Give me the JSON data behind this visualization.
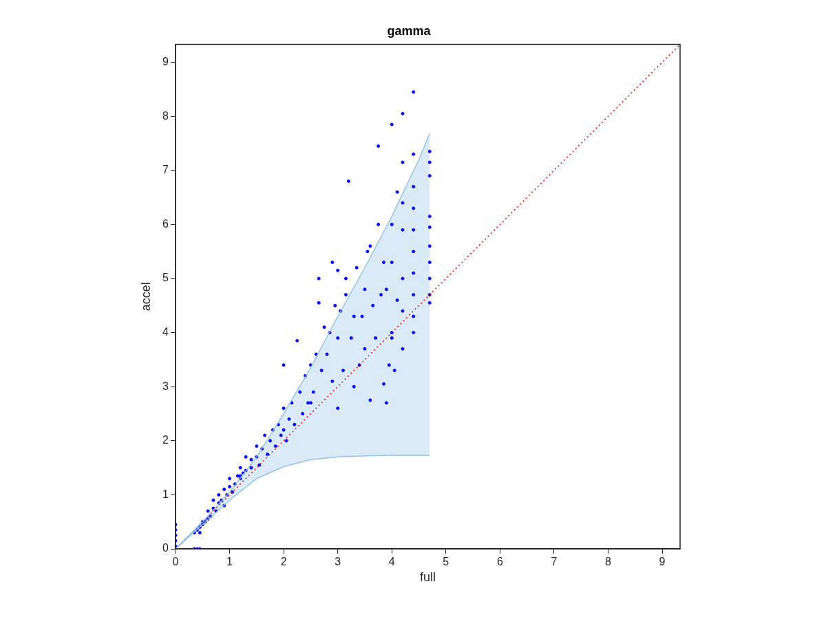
{
  "chart_data": {
    "type": "scatter",
    "title": "gamma",
    "xlabel": "full",
    "ylabel": "accel",
    "xlim": [
      0,
      9.33
    ],
    "ylim": [
      0,
      9.33
    ],
    "xticks": [
      0,
      1,
      2,
      3,
      4,
      5,
      6,
      7,
      8,
      9
    ],
    "yticks": [
      0,
      1,
      2,
      3,
      4,
      5,
      6,
      7,
      8,
      9
    ],
    "grid": false,
    "legend": false,
    "marker": "circle",
    "series": [
      {
        "type": "line",
        "marker": "none",
        "color": "#94c4e4",
        "x": [
          0,
          0.5,
          1,
          1.5,
          2,
          2.5,
          3,
          3.5,
          4,
          4.5,
          4.7
        ],
        "values": [
          0,
          0.5,
          1.05,
          1.7,
          2.5,
          3.35,
          4.3,
          5.2,
          6.15,
          7.2,
          7.68
        ],
        "lower": [
          0,
          0.45,
          0.9,
          1.3,
          1.52,
          1.65,
          1.7,
          1.72,
          1.73,
          1.73,
          1.73
        ],
        "upper": [
          0,
          0.5,
          1.05,
          1.7,
          2.5,
          3.35,
          4.3,
          5.2,
          6.15,
          7.2,
          7.68
        ]
      },
      {
        "type": "line",
        "color": "#ff0000",
        "line_style": "dotted",
        "marker": "none",
        "x": [
          0,
          9.33
        ],
        "values": [
          0,
          9.33
        ]
      },
      {
        "type": "line",
        "marker": "none",
        "color": "#94c4e4",
        "x": [
          0,
          0.5,
          1,
          1.5,
          2,
          2.5,
          3,
          3.5,
          4,
          4.5,
          4.7
        ],
        "values": [
          0,
          0.45,
          0.9,
          1.3,
          1.52,
          1.65,
          1.7,
          1.72,
          1.73,
          1.73,
          1.73
        ]
      },
      {
        "color": "#0000ff",
        "x": [
          0,
          0,
          0,
          0,
          0,
          0.35,
          0.4,
          0.45,
          0.35,
          0.4,
          0.45,
          0.5,
          0.55,
          0.6,
          0.6,
          0.65,
          0.7,
          0.7,
          0.75,
          0.8,
          0.8,
          0.85,
          0.9,
          0.9,
          0.95,
          1.0,
          1.0,
          1.05,
          1.1,
          1.15,
          1.2,
          1.2,
          1.25,
          1.3,
          1.3,
          1.4,
          1.4,
          1.5,
          1.5,
          1.55,
          1.6,
          1.65,
          1.7,
          1.75,
          1.8,
          1.85,
          1.9,
          1.95,
          2.0,
          2.0,
          2.05,
          2.1,
          2.15,
          2.2,
          2.25,
          2.3,
          2.35,
          2.4,
          2.45,
          2.5,
          2.55,
          2.6,
          2.65,
          2.7,
          2.75,
          2.8,
          2.85,
          2.9,
          2.95,
          3.0,
          3.0,
          3.05,
          3.1,
          3.15,
          3.2,
          3.25,
          3.3,
          3.35,
          3.4,
          3.45,
          3.5,
          3.55,
          3.6,
          3.6,
          3.65,
          3.7,
          3.75,
          3.75,
          3.8,
          3.85,
          3.85,
          3.9,
          3.95,
          4.0,
          4.0,
          4.0,
          4.0,
          4.05,
          4.1,
          4.1,
          4.2,
          4.2,
          4.2,
          4.2,
          4.2,
          4.2,
          4.2,
          4.4,
          4.4,
          4.4,
          4.4,
          4.4,
          4.4,
          4.4,
          4.4,
          4.4,
          4.4,
          4.7,
          4.7,
          4.7,
          4.7,
          4.7,
          4.7,
          4.7,
          4.7,
          4.7,
          4.7,
          4.0,
          2.0,
          1.2,
          0.5,
          0.45,
          3.5,
          3.3,
          2.9,
          2.5,
          3.9,
          2.65,
          3.0,
          3.15
        ],
        "values": [
          0.05,
          0.15,
          0.25,
          0.35,
          0.45,
          0,
          0,
          0,
          0.3,
          0.35,
          0.3,
          0.45,
          0.5,
          0.55,
          0.7,
          0.6,
          0.75,
          0.9,
          0.7,
          0.85,
          1.0,
          0.9,
          1.1,
          0.8,
          1.0,
          1.15,
          1.3,
          1.05,
          1.2,
          1.35,
          1.3,
          1.5,
          1.4,
          1.45,
          1.7,
          1.5,
          1.65,
          1.7,
          1.9,
          1.55,
          1.85,
          2.1,
          1.75,
          2.0,
          2.2,
          1.9,
          2.3,
          2.1,
          2.6,
          3.4,
          2.0,
          2.4,
          2.7,
          2.3,
          3.85,
          2.9,
          2.5,
          3.2,
          2.7,
          3.4,
          2.9,
          3.6,
          5.0,
          3.3,
          4.1,
          3.6,
          4.0,
          5.3,
          4.5,
          2.6,
          3.9,
          4.4,
          3.3,
          4.7,
          6.8,
          3.9,
          4.3,
          5.2,
          3.4,
          4.3,
          3.7,
          5.5,
          2.75,
          5.6,
          4.5,
          3.9,
          7.45,
          6.0,
          4.7,
          3.05,
          5.3,
          4.8,
          3.4,
          7.85,
          4.0,
          5.3,
          6.0,
          3.3,
          4.6,
          6.6,
          8.05,
          7.15,
          3.7,
          4.4,
          5.0,
          5.9,
          6.4,
          8.45,
          7.3,
          6.7,
          6.3,
          5.9,
          5.5,
          5.1,
          4.7,
          4.3,
          4.0,
          7.35,
          7.15,
          6.9,
          6.15,
          5.95,
          5.6,
          5.3,
          5.0,
          4.7,
          4.55,
          3.9,
          2.2,
          1.35,
          0.5,
          0.4,
          4.8,
          3.0,
          3.1,
          2.7,
          2.7,
          4.55,
          5.15,
          5.0
        ]
      }
    ]
  }
}
